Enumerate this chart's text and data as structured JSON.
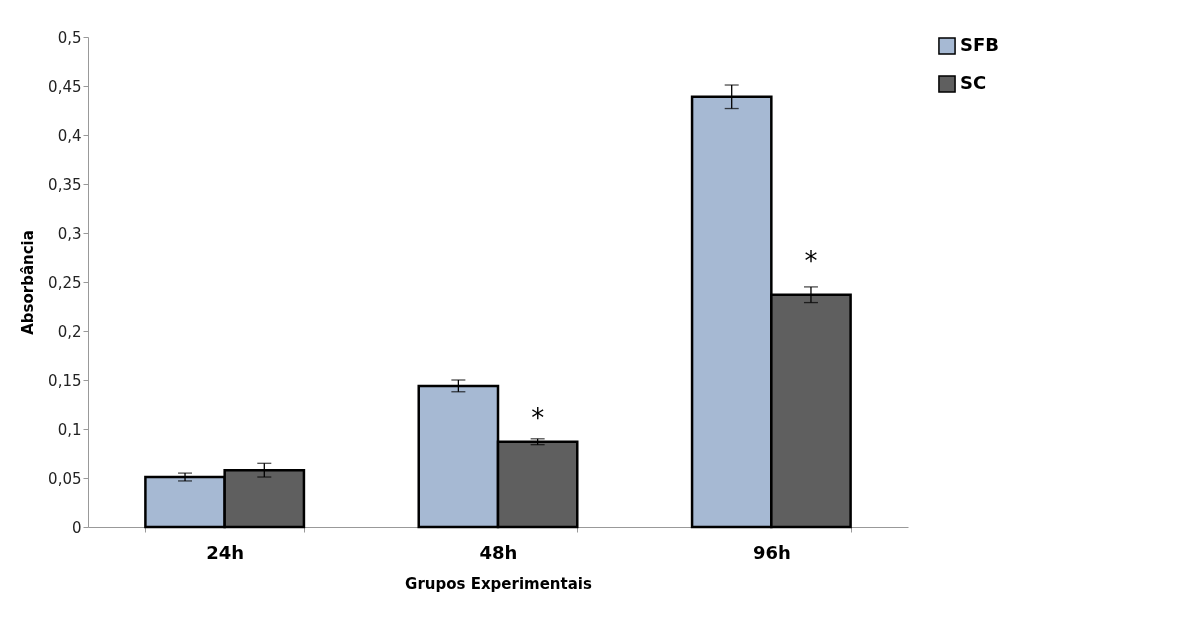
{
  "chart_data": {
    "type": "bar",
    "xlabel": "Grupos Experimentais",
    "ylabel": "Absorbância",
    "categories": [
      "24h",
      "48h",
      "96h"
    ],
    "series": [
      {
        "name": "SFB",
        "color": "#a6b9d3",
        "values": [
          0.051,
          0.144,
          0.439
        ],
        "errors": [
          0.004,
          0.006,
          0.012
        ]
      },
      {
        "name": "SC",
        "color": "#5f5f5f",
        "values": [
          0.058,
          0.087,
          0.237
        ],
        "errors": [
          0.007,
          0.003,
          0.008
        ]
      }
    ],
    "ylim": [
      0,
      0.5
    ],
    "yticks": [
      0,
      {
        "value": 0.05,
        "label": "0,05"
      },
      {
        "value": 0.1,
        "label": "0,1"
      },
      {
        "value": 0.15,
        "label": "0,15"
      },
      {
        "value": 0.2,
        "label": "0,2"
      },
      {
        "value": 0.25,
        "label": "0,25"
      },
      {
        "value": 0.3,
        "label": "0,3"
      },
      {
        "value": 0.35,
        "label": "0,35"
      },
      {
        "value": 0.4,
        "label": "0,4"
      },
      {
        "value": 0.45,
        "label": "0,45"
      },
      {
        "value": 0.5,
        "label": "0,5"
      }
    ],
    "grid": false,
    "legend": "right",
    "annotations": [
      {
        "text": "*",
        "x": "48h",
        "y": 0.11
      },
      {
        "text": "*",
        "x": "96h",
        "y": 0.27
      }
    ]
  }
}
